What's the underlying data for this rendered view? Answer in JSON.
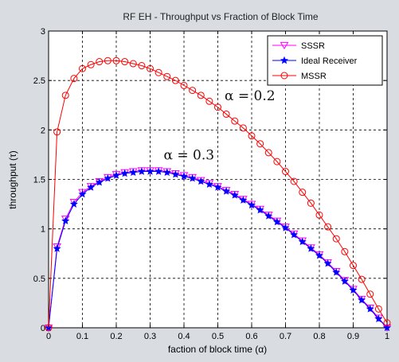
{
  "chart_data": {
    "type": "line",
    "title": "RF EH - Throughput vs Fraction of Block Time",
    "xlabel": "faction of block time (α)",
    "ylabel": "throughput (τ)",
    "xlim": [
      0,
      1
    ],
    "ylim": [
      0,
      3
    ],
    "xticks": [
      "0",
      "0.1",
      "0.2",
      "0.3",
      "0.4",
      "0.5",
      "0.6",
      "0.7",
      "0.8",
      "0.9",
      "1"
    ],
    "yticks": [
      "0",
      "0.5",
      "1",
      "1.5",
      "2",
      "2.5",
      "3"
    ],
    "grid": true,
    "legend_position": "top-right",
    "annotations": [
      {
        "text": "α = 0.2",
        "x": 0.52,
        "y": 2.3
      },
      {
        "text": "α = 0.3",
        "x": 0.34,
        "y": 1.7
      }
    ],
    "series": [
      {
        "name": "SSSR",
        "color": "#ff00ff",
        "marker": "triangle-down",
        "x": [
          0,
          0.025,
          0.05,
          0.075,
          0.1,
          0.125,
          0.15,
          0.175,
          0.2,
          0.225,
          0.25,
          0.275,
          0.3,
          0.325,
          0.35,
          0.375,
          0.4,
          0.425,
          0.45,
          0.475,
          0.5,
          0.525,
          0.55,
          0.575,
          0.6,
          0.625,
          0.65,
          0.675,
          0.7,
          0.725,
          0.75,
          0.775,
          0.8,
          0.825,
          0.85,
          0.875,
          0.9,
          0.925,
          0.95,
          0.975,
          1
        ],
        "y": [
          0,
          0.82,
          1.1,
          1.27,
          1.37,
          1.43,
          1.48,
          1.52,
          1.55,
          1.57,
          1.58,
          1.59,
          1.59,
          1.59,
          1.58,
          1.56,
          1.54,
          1.52,
          1.49,
          1.46,
          1.43,
          1.39,
          1.35,
          1.3,
          1.25,
          1.2,
          1.14,
          1.08,
          1.02,
          0.95,
          0.88,
          0.81,
          0.74,
          0.66,
          0.57,
          0.48,
          0.39,
          0.29,
          0.2,
          0.1,
          0
        ]
      },
      {
        "name": "Ideal Receiver",
        "color": "#0000ff",
        "marker": "star",
        "x": [
          0,
          0.025,
          0.05,
          0.075,
          0.1,
          0.125,
          0.15,
          0.175,
          0.2,
          0.225,
          0.25,
          0.275,
          0.3,
          0.325,
          0.35,
          0.375,
          0.4,
          0.425,
          0.45,
          0.475,
          0.5,
          0.525,
          0.55,
          0.575,
          0.6,
          0.625,
          0.65,
          0.675,
          0.7,
          0.725,
          0.75,
          0.775,
          0.8,
          0.825,
          0.85,
          0.875,
          0.9,
          0.925,
          0.95,
          0.975,
          1
        ],
        "y": [
          0,
          0.8,
          1.08,
          1.25,
          1.35,
          1.42,
          1.47,
          1.51,
          1.54,
          1.56,
          1.57,
          1.58,
          1.58,
          1.58,
          1.57,
          1.55,
          1.53,
          1.51,
          1.48,
          1.45,
          1.42,
          1.38,
          1.34,
          1.29,
          1.24,
          1.19,
          1.13,
          1.07,
          1.01,
          0.94,
          0.87,
          0.8,
          0.73,
          0.65,
          0.56,
          0.47,
          0.38,
          0.28,
          0.19,
          0.09,
          0
        ]
      },
      {
        "name": "MSSR",
        "color": "#ff0000",
        "marker": "circle",
        "x": [
          0,
          0.025,
          0.05,
          0.075,
          0.1,
          0.125,
          0.15,
          0.175,
          0.2,
          0.225,
          0.25,
          0.275,
          0.3,
          0.325,
          0.35,
          0.375,
          0.4,
          0.425,
          0.45,
          0.475,
          0.5,
          0.525,
          0.55,
          0.575,
          0.6,
          0.625,
          0.65,
          0.675,
          0.7,
          0.725,
          0.75,
          0.775,
          0.8,
          0.825,
          0.85,
          0.875,
          0.9,
          0.925,
          0.95,
          0.975,
          1
        ],
        "y": [
          0,
          1.98,
          2.35,
          2.52,
          2.62,
          2.66,
          2.69,
          2.7,
          2.7,
          2.69,
          2.67,
          2.65,
          2.62,
          2.58,
          2.54,
          2.5,
          2.45,
          2.4,
          2.35,
          2.29,
          2.23,
          2.16,
          2.09,
          2.02,
          1.94,
          1.86,
          1.77,
          1.68,
          1.58,
          1.48,
          1.37,
          1.26,
          1.14,
          1.02,
          0.9,
          0.77,
          0.63,
          0.49,
          0.34,
          0.19,
          0.05
        ]
      }
    ]
  }
}
